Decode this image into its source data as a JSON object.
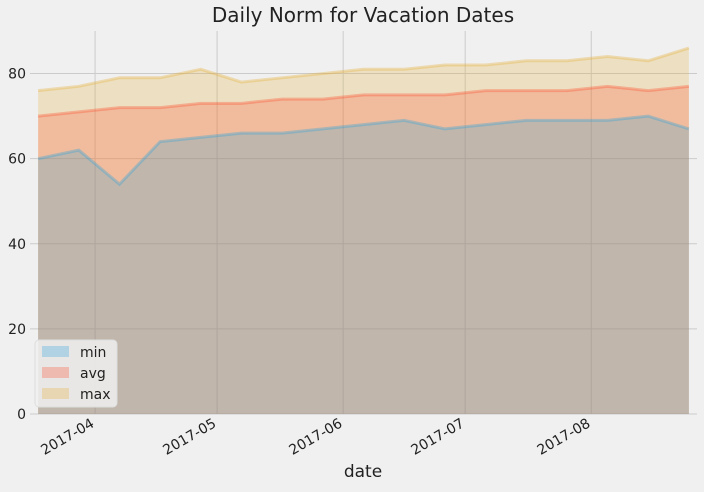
{
  "chart_data": {
    "type": "area",
    "title": "Daily Norm for Vacation Dates",
    "xlabel": "date",
    "ylabel": "",
    "ylim": [
      0,
      90
    ],
    "xlim": [
      "2017-03-16",
      "2017-08-27"
    ],
    "y_ticks": [
      0,
      20,
      40,
      60,
      80
    ],
    "x_ticks": [
      {
        "date": "2017-04-01",
        "label": "2017-04"
      },
      {
        "date": "2017-05-01",
        "label": "2017-05"
      },
      {
        "date": "2017-06-01",
        "label": "2017-06"
      },
      {
        "date": "2017-07-01",
        "label": "2017-07"
      },
      {
        "date": "2017-08-01",
        "label": "2017-08"
      }
    ],
    "grid": true,
    "legend_position": "bottom-left",
    "background": "#f0f0f0",
    "grid_color": "#cbcbcb",
    "stacked": false,
    "x": [
      "2017-03-18",
      "2017-03-28",
      "2017-04-07",
      "2017-04-17",
      "2017-04-27",
      "2017-05-07",
      "2017-05-17",
      "2017-05-27",
      "2017-06-06",
      "2017-06-16",
      "2017-06-26",
      "2017-07-06",
      "2017-07-16",
      "2017-07-26",
      "2017-08-05",
      "2017-08-15",
      "2017-08-25"
    ],
    "series": [
      {
        "name": "max",
        "color": "#e5ae38",
        "values": [
          76,
          77,
          79,
          79,
          81,
          78,
          79,
          80,
          81,
          81,
          82,
          82,
          83,
          83,
          84,
          83,
          86
        ]
      },
      {
        "name": "avg",
        "color": "#fc4f30",
        "values": [
          70,
          71,
          72,
          72,
          73,
          73,
          74,
          74,
          75,
          75,
          75,
          76,
          76,
          76,
          77,
          76,
          77
        ]
      },
      {
        "name": "min",
        "color": "#30a2da",
        "values": [
          60,
          62,
          54,
          64,
          65,
          66,
          66,
          67,
          68,
          69,
          67,
          68,
          69,
          69,
          69,
          70,
          67
        ]
      }
    ]
  }
}
